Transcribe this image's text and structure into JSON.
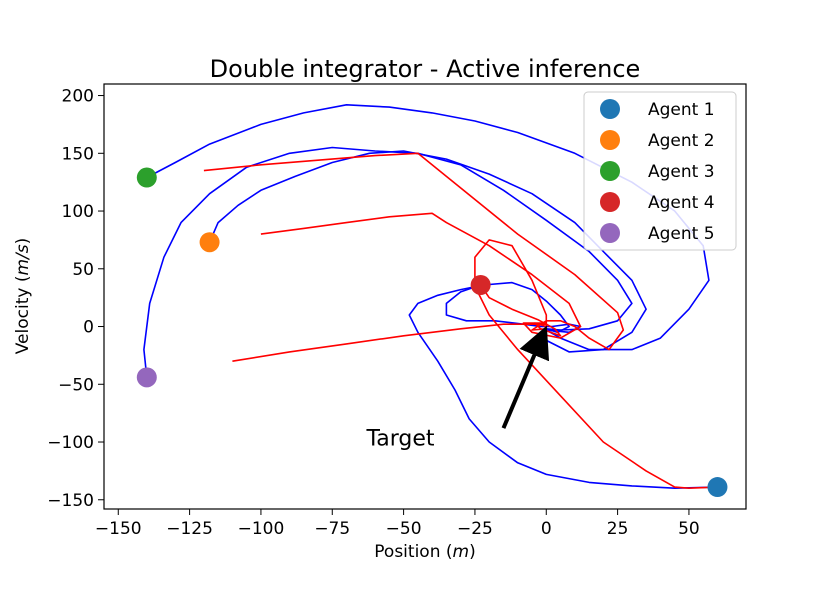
{
  "chart_data": {
    "type": "line",
    "title": "Double integrator - Active inference",
    "xlabel": "Position (m)",
    "xlabel_parts": {
      "prefix": "Position (",
      "unit": "m",
      "suffix": ")"
    },
    "ylabel": "Velocity (m/s)",
    "ylabel_parts": {
      "prefix": "Velocity (",
      "unit": "m/s",
      "suffix": ")"
    },
    "xlim": [
      -155,
      70
    ],
    "ylim": [
      -158,
      210
    ],
    "xticks": [
      -150,
      -125,
      -100,
      -75,
      -50,
      -25,
      0,
      25,
      50
    ],
    "xtick_labels": [
      "−150",
      "−125",
      "−100",
      "−75",
      "−50",
      "−25",
      "0",
      "25",
      "50"
    ],
    "yticks": [
      -150,
      -100,
      -50,
      0,
      50,
      100,
      150,
      200
    ],
    "ytick_labels": [
      "−150",
      "−100",
      "−50",
      "0",
      "50",
      "100",
      "150",
      "200"
    ],
    "grid": false,
    "legend_position": "top-right",
    "agents": [
      {
        "name": "Agent 1",
        "color": "#1f77b4",
        "x": 60,
        "y": -139
      },
      {
        "name": "Agent 2",
        "color": "#ff7f0e",
        "x": -118,
        "y": 73
      },
      {
        "name": "Agent 3",
        "color": "#2ca02c",
        "x": -140,
        "y": 129
      },
      {
        "name": "Agent 4",
        "color": "#d62728",
        "x": -23,
        "y": 36
      },
      {
        "name": "Agent 5",
        "color": "#9467bd",
        "x": -140,
        "y": -44
      }
    ],
    "series": [
      {
        "color": "#0000ff",
        "points": [
          [
            -140,
            -44
          ],
          [
            -141,
            -20
          ],
          [
            -139,
            20
          ],
          [
            -134,
            60
          ],
          [
            -128,
            90
          ],
          [
            -118,
            115
          ],
          [
            -105,
            138
          ],
          [
            -90,
            150
          ],
          [
            -75,
            155
          ],
          [
            -60,
            152
          ],
          [
            -45,
            150
          ],
          [
            -30,
            140
          ],
          [
            -15,
            118
          ],
          [
            0,
            92
          ],
          [
            15,
            65
          ],
          [
            25,
            40
          ],
          [
            30,
            20
          ],
          [
            25,
            5
          ],
          [
            15,
            -2
          ],
          [
            5,
            -3
          ],
          [
            0,
            -2
          ]
        ]
      },
      {
        "color": "#0000ff",
        "points": [
          [
            -140,
            129
          ],
          [
            -130,
            142
          ],
          [
            -118,
            158
          ],
          [
            -100,
            175
          ],
          [
            -85,
            185
          ],
          [
            -70,
            192
          ],
          [
            -55,
            190
          ],
          [
            -40,
            185
          ],
          [
            -25,
            178
          ],
          [
            -10,
            168
          ],
          [
            10,
            150
          ],
          [
            30,
            125
          ],
          [
            45,
            100
          ],
          [
            55,
            70
          ],
          [
            57,
            40
          ],
          [
            50,
            15
          ],
          [
            40,
            -10
          ],
          [
            30,
            -20
          ],
          [
            15,
            -20
          ],
          [
            5,
            -10
          ],
          [
            0,
            -3
          ]
        ]
      },
      {
        "color": "#0000ff",
        "points": [
          [
            -118,
            73
          ],
          [
            -115,
            90
          ],
          [
            -108,
            105
          ],
          [
            -100,
            118
          ],
          [
            -88,
            130
          ],
          [
            -75,
            142
          ],
          [
            -62,
            150
          ],
          [
            -50,
            152
          ],
          [
            -35,
            145
          ],
          [
            -20,
            132
          ],
          [
            -5,
            115
          ],
          [
            10,
            90
          ],
          [
            20,
            65
          ],
          [
            30,
            40
          ],
          [
            35,
            15
          ],
          [
            30,
            -5
          ],
          [
            20,
            -20
          ],
          [
            8,
            -22
          ],
          [
            0,
            -12
          ],
          [
            0,
            -3
          ]
        ]
      },
      {
        "color": "#0000ff",
        "points": [
          [
            60,
            -139
          ],
          [
            45,
            -140
          ],
          [
            30,
            -138
          ],
          [
            15,
            -135
          ],
          [
            0,
            -128
          ],
          [
            -10,
            -118
          ],
          [
            -20,
            -100
          ],
          [
            -27,
            -80
          ],
          [
            -32,
            -55
          ],
          [
            -38,
            -30
          ],
          [
            -45,
            -5
          ],
          [
            -48,
            10
          ],
          [
            -45,
            20
          ],
          [
            -38,
            27
          ],
          [
            -30,
            32
          ],
          [
            -22,
            36
          ],
          [
            -12,
            38
          ],
          [
            -5,
            32
          ],
          [
            0,
            22
          ],
          [
            5,
            10
          ],
          [
            8,
            0
          ],
          [
            4,
            -5
          ],
          [
            0,
            -2
          ]
        ]
      },
      {
        "color": "#0000ff",
        "points": [
          [
            -23,
            36
          ],
          [
            -30,
            30
          ],
          [
            -35,
            20
          ],
          [
            -35,
            10
          ],
          [
            -28,
            5
          ],
          [
            -18,
            5
          ],
          [
            -8,
            2
          ],
          [
            -2,
            0
          ],
          [
            2,
            0
          ],
          [
            8,
            2
          ],
          [
            12,
            0
          ],
          [
            8,
            -5
          ],
          [
            0,
            -3
          ]
        ]
      },
      {
        "color": "#ff0000",
        "points": [
          [
            -120,
            135
          ],
          [
            -100,
            140
          ],
          [
            -80,
            144
          ],
          [
            -60,
            148
          ],
          [
            -45,
            150
          ],
          [
            -35,
            130
          ],
          [
            -10,
            80
          ],
          [
            10,
            45
          ],
          [
            25,
            12
          ],
          [
            27,
            -3
          ],
          [
            22,
            -20
          ],
          [
            15,
            -10
          ],
          [
            10,
            0
          ],
          [
            5,
            5
          ],
          [
            0,
            5
          ],
          [
            -5,
            -3
          ],
          [
            0,
            -2
          ]
        ]
      },
      {
        "color": "#ff0000",
        "points": [
          [
            -100,
            80
          ],
          [
            -85,
            85
          ],
          [
            -70,
            90
          ],
          [
            -55,
            95
          ],
          [
            -40,
            98
          ],
          [
            -35,
            90
          ],
          [
            -20,
            70
          ],
          [
            -5,
            45
          ],
          [
            8,
            20
          ],
          [
            12,
            0
          ],
          [
            5,
            -10
          ],
          [
            -5,
            -5
          ],
          [
            -8,
            3
          ],
          [
            0,
            3
          ],
          [
            0,
            -2
          ]
        ]
      },
      {
        "color": "#ff0000",
        "points": [
          [
            -110,
            -30
          ],
          [
            -90,
            -22
          ],
          [
            -70,
            -15
          ],
          [
            -50,
            -8
          ],
          [
            -30,
            -2
          ],
          [
            -15,
            2
          ],
          [
            0,
            2
          ]
        ]
      },
      {
        "color": "#ff0000",
        "points": [
          [
            60,
            -139
          ],
          [
            50,
            -140
          ],
          [
            45,
            -139
          ],
          [
            35,
            -125
          ],
          [
            20,
            -100
          ],
          [
            5,
            -60
          ],
          [
            -10,
            -20
          ],
          [
            -20,
            10
          ],
          [
            -25,
            35
          ],
          [
            -25,
            60
          ],
          [
            -20,
            75
          ],
          [
            -12,
            70
          ],
          [
            -5,
            40
          ],
          [
            0,
            10
          ],
          [
            0,
            0
          ]
        ]
      },
      {
        "color": "#ff0000",
        "points": [
          [
            -23,
            36
          ],
          [
            -20,
            25
          ],
          [
            -12,
            15
          ],
          [
            -3,
            6
          ],
          [
            3,
            -2
          ],
          [
            5,
            -8
          ],
          [
            -2,
            -2
          ],
          [
            -4,
            3
          ],
          [
            0,
            0
          ]
        ]
      }
    ],
    "annotations": [
      {
        "text": "Target",
        "x": -63,
        "y": -103,
        "arrow_from": [
          -15,
          -88
        ],
        "arrow_to": [
          -2,
          -12
        ]
      }
    ]
  }
}
